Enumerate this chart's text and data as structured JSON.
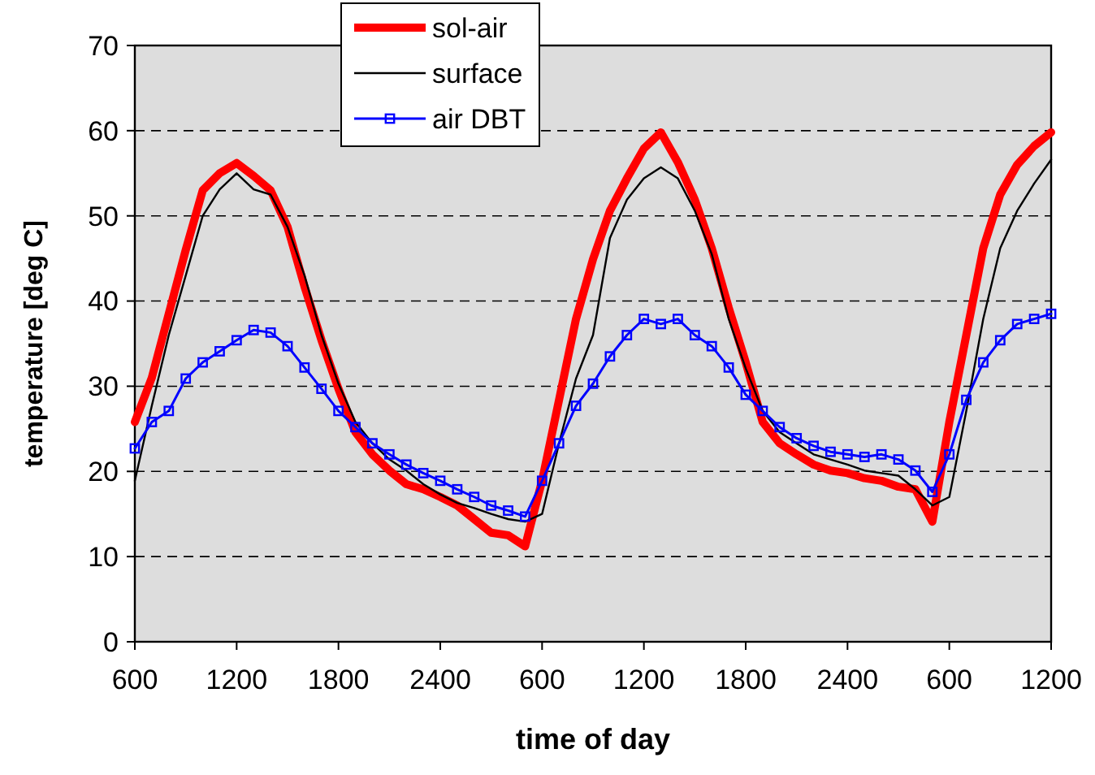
{
  "chart_data": {
    "type": "line",
    "xlabel": "time of day",
    "ylabel": "temperature  [deg C]",
    "ylim": [
      0,
      70
    ],
    "yticks": [
      0,
      10,
      20,
      30,
      40,
      50,
      60,
      70
    ],
    "grid": "y",
    "legend": "top",
    "categories": [
      "600",
      null,
      null,
      null,
      null,
      null,
      "1200",
      null,
      null,
      null,
      null,
      null,
      "1800",
      null,
      null,
      null,
      null,
      null,
      "2400",
      null,
      null,
      null,
      null,
      null,
      "600",
      null,
      null,
      null,
      null,
      null,
      "1200",
      null,
      null,
      null,
      null,
      null,
      "1800",
      null,
      null,
      null,
      null,
      null,
      "2400",
      null,
      null,
      null,
      null,
      null,
      "600",
      null,
      null,
      null,
      null,
      null,
      "1200"
    ],
    "series": [
      {
        "name": "sol-air",
        "color": "#ff0000",
        "marker": "none",
        "values": [
          25.8,
          31,
          38.5,
          46,
          53,
          55,
          56.2,
          54.7,
          53,
          48.7,
          41.7,
          35.4,
          29.7,
          24.6,
          22,
          20.1,
          18.5,
          17.9,
          17,
          16,
          14.4,
          12.8,
          12.5,
          11.2,
          18.9,
          28.4,
          37.9,
          44.9,
          50.6,
          54.4,
          57.9,
          59.8,
          56.3,
          51.9,
          46.2,
          39.2,
          32.8,
          25.8,
          23.3,
          22,
          20.8,
          20.1,
          19.8,
          19.2,
          18.9,
          18.2,
          17.9,
          14.1,
          25.8,
          36,
          46.2,
          52.5,
          56,
          58.2,
          59.8
        ]
      },
      {
        "name": "surface",
        "color": "#000000",
        "marker": "none",
        "values": [
          18.9,
          27.7,
          36,
          43,
          50,
          53.1,
          55,
          53.1,
          52.5,
          48.7,
          43,
          36,
          30.3,
          25.8,
          23.3,
          21.4,
          20.1,
          18.5,
          17.3,
          16.3,
          15.7,
          15,
          14.4,
          14.1,
          15,
          23.3,
          30.9,
          36,
          47.4,
          51.9,
          54.4,
          55.7,
          54.4,
          50.6,
          45.5,
          37.9,
          32.1,
          27.1,
          24.6,
          23.3,
          22,
          21.4,
          20.8,
          20.1,
          19.8,
          19.5,
          17.9,
          16,
          17,
          27.1,
          37.9,
          46.2,
          50.6,
          53.8,
          56.6
        ]
      },
      {
        "name": "air DBT",
        "color": "#0000ff",
        "marker": "square",
        "values": [
          22.7,
          25.8,
          27.1,
          30.9,
          32.8,
          34.1,
          35.4,
          36.6,
          36.3,
          34.7,
          32.2,
          29.7,
          27.1,
          25.2,
          23.3,
          22,
          20.8,
          19.8,
          18.9,
          17.9,
          17,
          16,
          15.4,
          14.7,
          18.9,
          23.3,
          27.7,
          30.3,
          33.5,
          36,
          37.9,
          37.3,
          37.9,
          36,
          34.7,
          32.2,
          29,
          27.1,
          25.2,
          23.9,
          23,
          22.3,
          22,
          21.7,
          22,
          21.4,
          20.1,
          17.6,
          22,
          28.4,
          32.8,
          35.4,
          37.3,
          37.9,
          38.5
        ]
      }
    ]
  }
}
